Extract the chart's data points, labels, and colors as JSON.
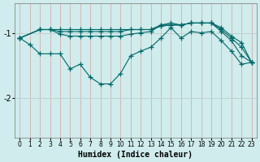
{
  "xlabel": "Humidex (Indice chaleur)",
  "background_color": "#d0ecec",
  "grid_color": "#c0d8d8",
  "line_color": "#006666",
  "xlim": [
    -0.5,
    23.5
  ],
  "ylim": [
    -2.6,
    -0.55
  ],
  "yticks": [
    -2,
    -1
  ],
  "xticks": [
    0,
    1,
    2,
    3,
    4,
    5,
    6,
    7,
    8,
    9,
    10,
    11,
    12,
    13,
    14,
    15,
    16,
    17,
    18,
    19,
    20,
    21,
    22,
    23
  ],
  "series": [
    {
      "x": [
        0,
        2,
        3,
        4,
        5,
        6,
        7,
        8,
        9,
        10,
        11,
        12,
        13,
        14,
        15,
        16,
        17,
        18,
        19,
        20,
        21,
        22,
        23
      ],
      "y": [
        -1.08,
        -0.95,
        -0.95,
        -0.95,
        -0.95,
        -0.95,
        -0.95,
        -0.95,
        -0.95,
        -0.95,
        -0.95,
        -0.95,
        -0.95,
        -0.9,
        -0.88,
        -0.88,
        -0.85,
        -0.85,
        -0.85,
        -0.92,
        -1.05,
        -1.15,
        -1.45
      ]
    },
    {
      "x": [
        0,
        2,
        3,
        4,
        5,
        6,
        7,
        8,
        9,
        10,
        11,
        12,
        13,
        14,
        15,
        16,
        17,
        18,
        19,
        20,
        21,
        22,
        23
      ],
      "y": [
        -1.08,
        -0.95,
        -0.95,
        -0.98,
        -0.98,
        -0.98,
        -0.98,
        -0.98,
        -0.98,
        -0.98,
        -0.95,
        -0.95,
        -0.95,
        -0.88,
        -0.88,
        -0.88,
        -0.85,
        -0.85,
        -0.85,
        -0.95,
        -1.08,
        -1.22,
        -1.45
      ]
    },
    {
      "x": [
        0,
        2,
        3,
        4,
        5,
        6,
        7,
        8,
        9,
        10,
        11,
        12,
        13,
        14,
        15,
        16,
        17,
        18,
        19,
        20,
        21,
        22,
        23
      ],
      "y": [
        -1.08,
        -0.95,
        -0.95,
        -1.02,
        -1.05,
        -1.05,
        -1.05,
        -1.05,
        -1.05,
        -1.05,
        -1.02,
        -1.0,
        -0.98,
        -0.88,
        -0.85,
        -0.88,
        -0.85,
        -0.85,
        -0.85,
        -0.98,
        -1.12,
        -1.35,
        -1.45
      ]
    },
    {
      "x": [
        0,
        1,
        2,
        3,
        4,
        5,
        6,
        7,
        8,
        9,
        10,
        11,
        12,
        13,
        14,
        15,
        16,
        17,
        18,
        19,
        20,
        21,
        22,
        23
      ],
      "y": [
        -1.08,
        -1.18,
        -1.32,
        -1.32,
        -1.32,
        -1.55,
        -1.48,
        -1.68,
        -1.78,
        -1.78,
        -1.62,
        -1.35,
        -1.28,
        -1.22,
        -1.08,
        -0.92,
        -1.08,
        -0.98,
        -1.0,
        -0.98,
        -1.12,
        -1.28,
        -1.48,
        -1.45
      ]
    }
  ]
}
